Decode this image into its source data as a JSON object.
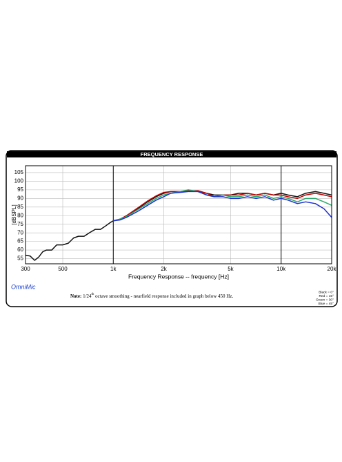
{
  "chart_data": {
    "type": "line",
    "title": "FREQUENCY RESPONSE",
    "xlabel": "Frequency Response -- frequency [Hz]",
    "ylabel": "[dBSPL]",
    "brand": "OmniMic",
    "note": {
      "label": "Note:",
      "text_before": "1/24",
      "superscript": "th",
      "text_after": "octave smoothing - nearfield response included in graph below 450 Hz."
    },
    "xscale": "log",
    "grid": true,
    "legend": "bottom-right",
    "xlim": [
      300,
      20000
    ],
    "ylim": [
      52,
      109
    ],
    "xticks": [
      300,
      500,
      {
        "value": 1000,
        "label": "1k"
      },
      {
        "value": 2000,
        "label": "2k"
      },
      {
        "value": 5000,
        "label": "5k"
      },
      {
        "value": 10000,
        "label": "10k"
      },
      {
        "value": 20000,
        "label": "20k"
      }
    ],
    "yticks": [
      55,
      60,
      65,
      70,
      75,
      80,
      85,
      90,
      95,
      100,
      105
    ],
    "x": [
      300,
      320,
      340,
      360,
      380,
      400,
      430,
      460,
      500,
      540,
      580,
      620,
      670,
      720,
      780,
      840,
      900,
      960,
      1000,
      1100,
      1200,
      1400,
      1600,
      1800,
      2000,
      2200,
      2500,
      2800,
      3200,
      3600,
      4000,
      4500,
      5000,
      5600,
      6300,
      7100,
      8000,
      9000,
      10000,
      11000,
      12500,
      14000,
      16000,
      18000,
      20000
    ],
    "series": [
      {
        "name": "Black = 0°",
        "color": "#111111",
        "values": [
          57,
          56.5,
          54,
          56,
          59,
          60,
          60,
          63,
          63,
          64,
          67,
          68,
          68,
          70,
          72,
          72,
          74,
          76,
          77,
          78,
          80,
          84,
          88,
          91,
          93,
          94,
          94,
          94.5,
          94,
          93,
          92,
          92,
          92,
          93,
          93,
          92,
          93,
          92,
          93,
          92,
          91,
          93,
          94,
          93,
          92
        ]
      },
      {
        "name": "Red = 15°",
        "color": "#c00000",
        "values": [
          null,
          null,
          null,
          null,
          null,
          null,
          null,
          null,
          null,
          null,
          null,
          null,
          null,
          null,
          null,
          null,
          null,
          null,
          77,
          78,
          80,
          84.5,
          88.5,
          91.5,
          93.5,
          94,
          94,
          94.5,
          94.5,
          93,
          91,
          92,
          92,
          92,
          93,
          92,
          93,
          92,
          92,
          91,
          90,
          92,
          93,
          92,
          91
        ]
      },
      {
        "name": "Green = 30°",
        "color": "#2aa86a",
        "values": [
          null,
          null,
          null,
          null,
          null,
          null,
          null,
          null,
          null,
          null,
          null,
          null,
          null,
          null,
          null,
          null,
          null,
          null,
          77,
          78,
          79.5,
          83.5,
          87,
          90,
          92,
          93,
          94,
          95,
          94,
          92,
          91,
          92,
          91,
          91,
          92,
          91,
          92,
          90,
          91,
          90,
          88,
          90,
          90,
          88,
          86
        ]
      },
      {
        "name": "Blue = 45°",
        "color": "#1c2fd0",
        "values": [
          null,
          null,
          null,
          null,
          null,
          null,
          null,
          null,
          null,
          null,
          null,
          null,
          null,
          null,
          null,
          null,
          null,
          null,
          77,
          77.5,
          79,
          82.5,
          86,
          89,
          91,
          93,
          93.5,
          94,
          94,
          92,
          91,
          91,
          90,
          90,
          91,
          90,
          91,
          89,
          90,
          89,
          87,
          88,
          87,
          84,
          79
        ]
      }
    ]
  }
}
